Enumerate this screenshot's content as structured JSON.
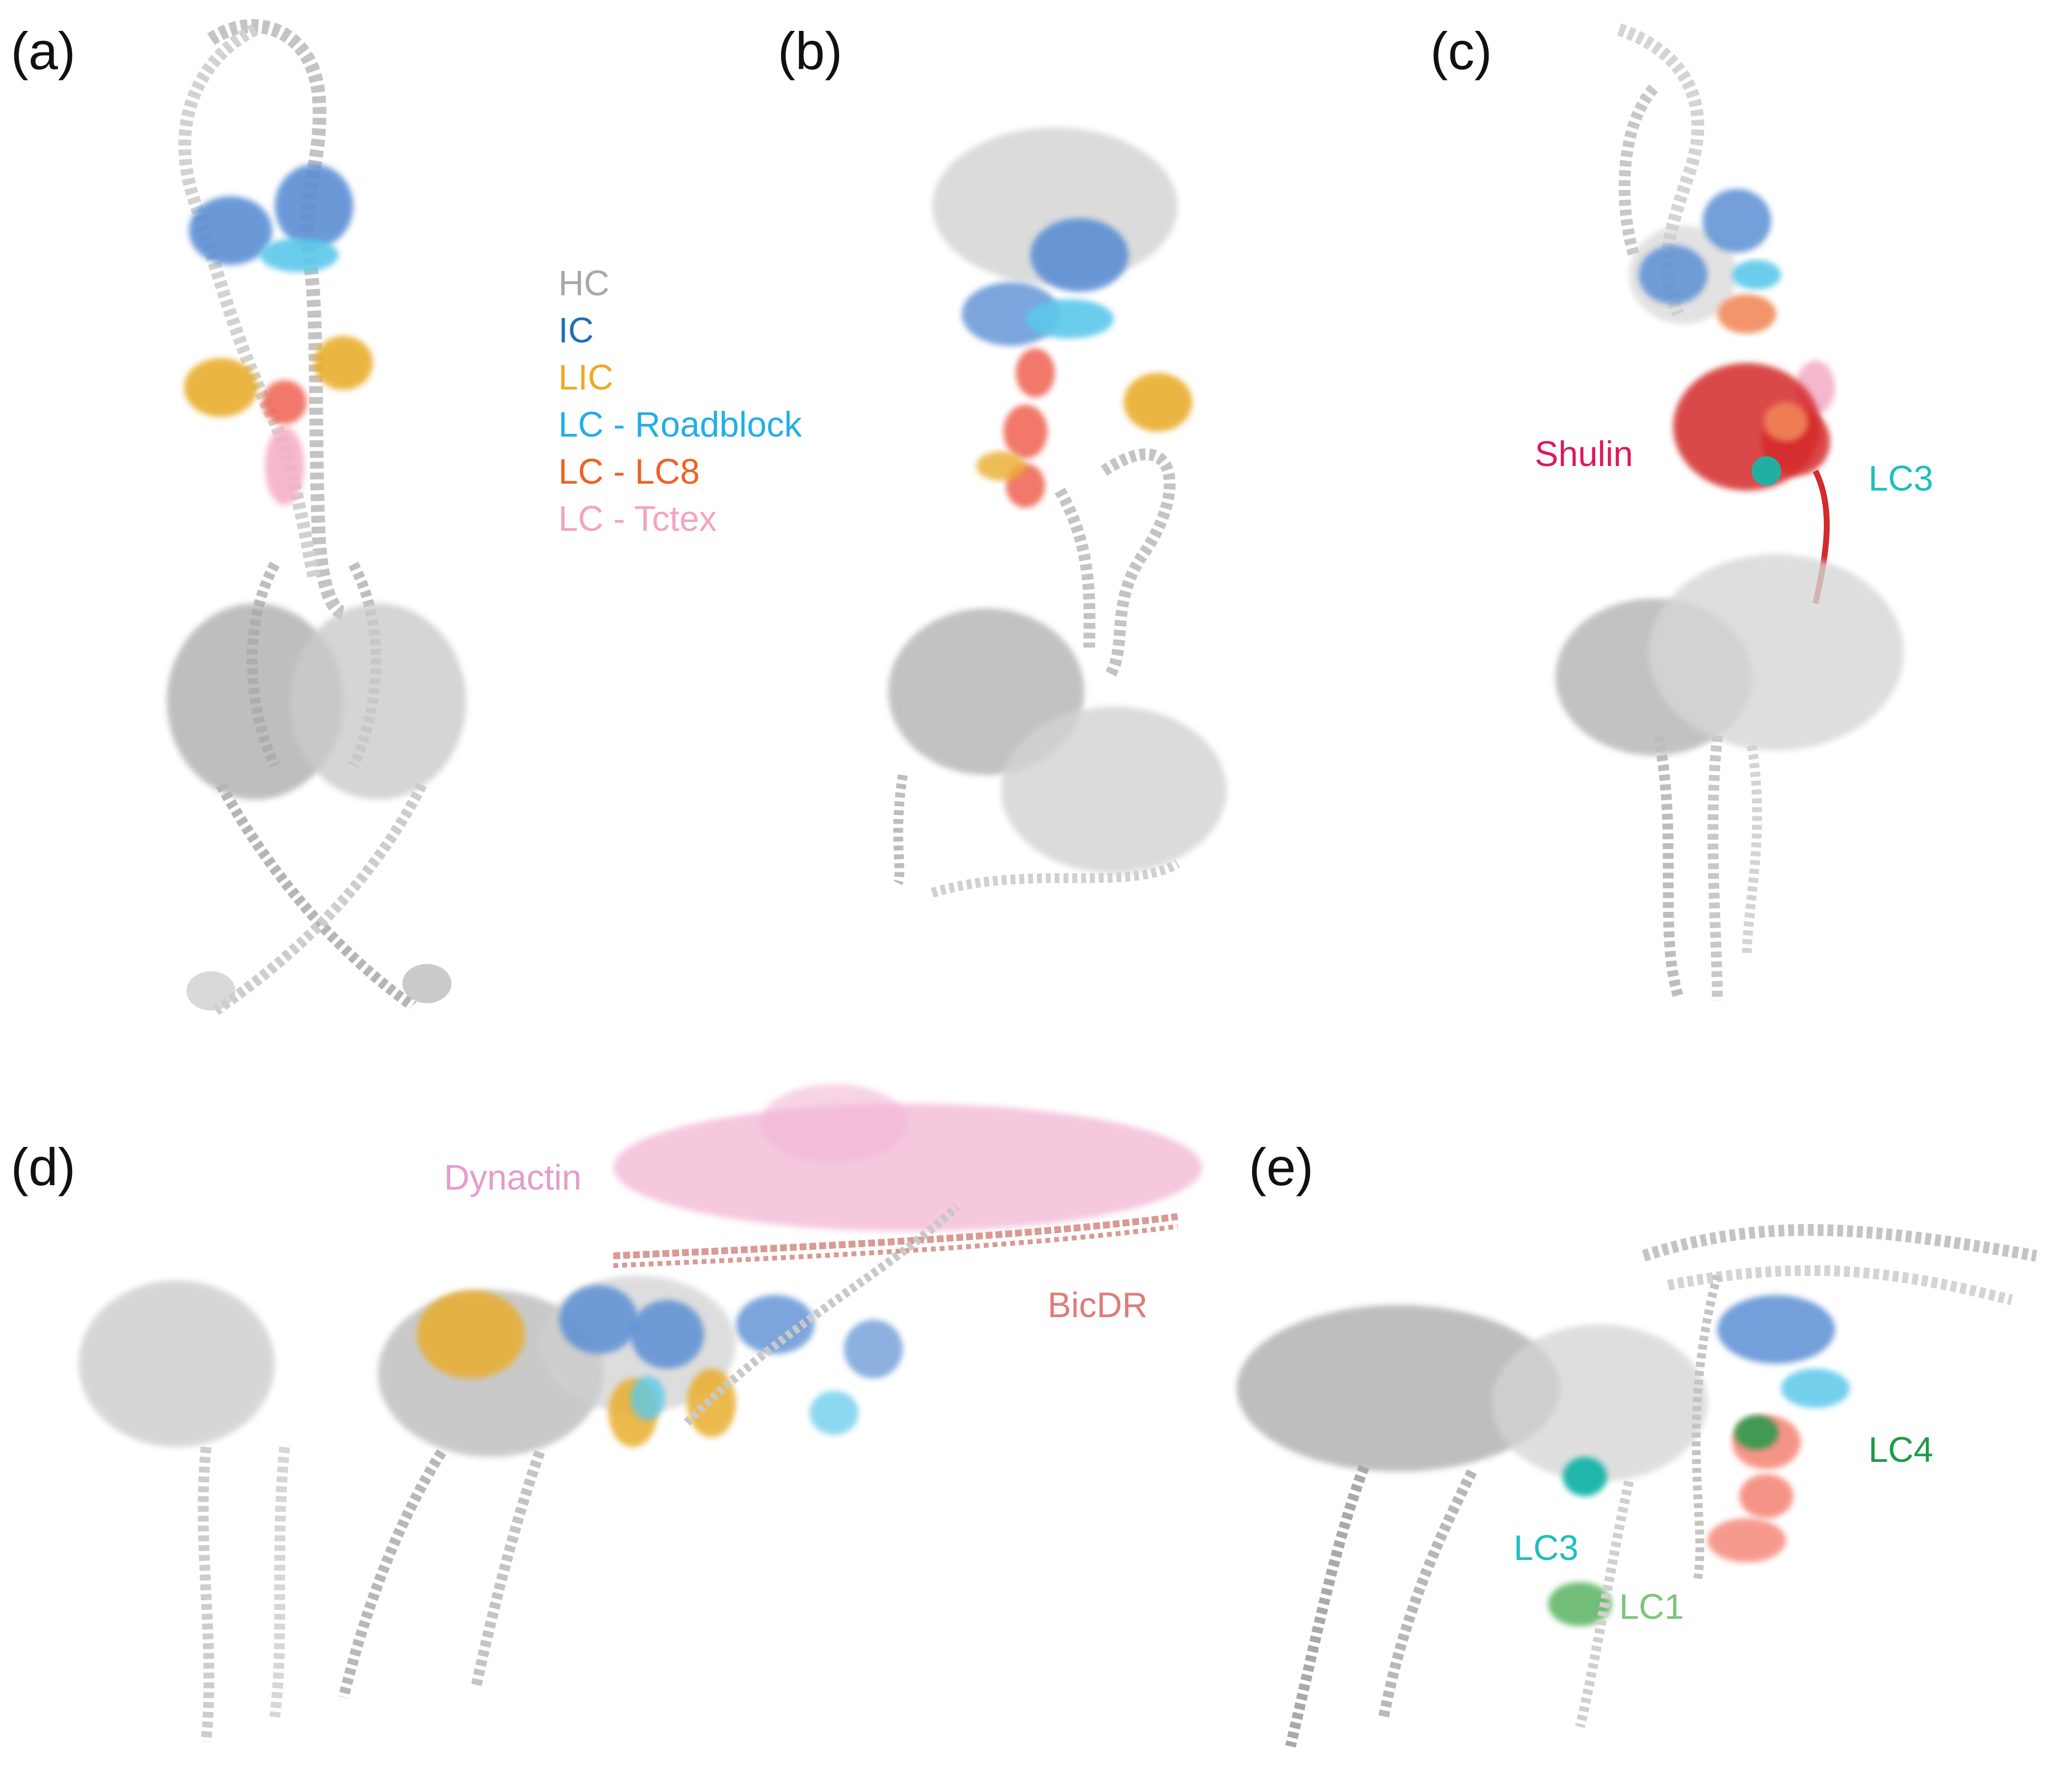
{
  "panels": {
    "a": {
      "label": "(a)"
    },
    "b": {
      "label": "(b)"
    },
    "c": {
      "label": "(c)"
    },
    "d": {
      "label": "(d)"
    },
    "e": {
      "label": "(e)"
    }
  },
  "legend": [
    {
      "key": "hc",
      "text": "HC",
      "color": "#a8a8a8"
    },
    {
      "key": "ic",
      "text": "IC",
      "color": "#1f6fb5"
    },
    {
      "key": "lic",
      "text": "LIC",
      "color": "#f0a81e"
    },
    {
      "key": "roadblock",
      "text": "LC - Roadblock",
      "color": "#22aee8"
    },
    {
      "key": "lc8",
      "text": "LC - LC8",
      "color": "#f06223"
    },
    {
      "key": "tctex",
      "text": "LC - Tctex",
      "color": "#f5a3c0"
    }
  ],
  "annotations": {
    "shulin": {
      "text": "Shulin",
      "color": "#e0185a"
    },
    "lc3_c": {
      "text": "LC3",
      "color": "#1dbfbf"
    },
    "dynactin": {
      "text": "Dynactin",
      "color": "#e59ccc"
    },
    "bicdr": {
      "text": "BicDR",
      "color": "#e07b7b"
    },
    "lc4": {
      "text": "LC4",
      "color": "#1e9a48"
    },
    "lc3_e": {
      "text": "LC3",
      "color": "#1dbfbf"
    },
    "lc1": {
      "text": "LC1",
      "color": "#7cc47c"
    }
  },
  "colors": {
    "hc_dark": "#9a9a9a",
    "hc_light": "#cfcfcf",
    "ic": "#5b8fd4",
    "lic": "#e9ad2e",
    "roadblock": "#5cc8ea",
    "lc8": "#f06a5a",
    "tctex": "#f4b0c8",
    "shulin": "#d42a2a",
    "dynactin": "#f2b6d4",
    "bicdr": "#d99a94",
    "lc4": "#2e9a4e",
    "lc3": "#19b4a8",
    "lc1": "#63b86b"
  }
}
